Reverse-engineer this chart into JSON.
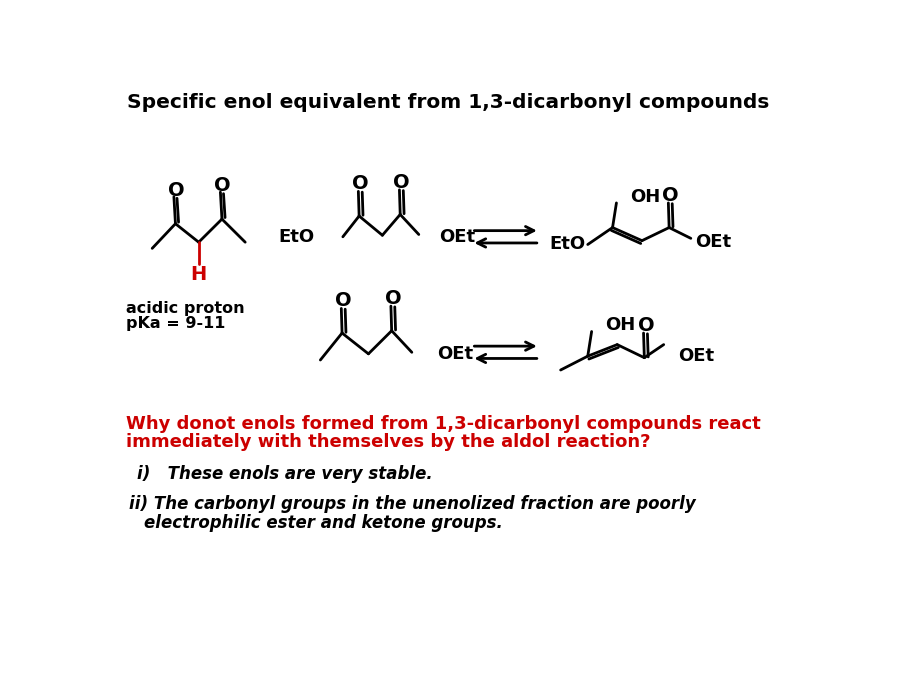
{
  "title": "Specific enol equivalent from 1,3-dicarbonyl compounds",
  "title_fontsize": 14.5,
  "title_color": "#000000",
  "bg_color": "#ffffff",
  "red_color": "#cc0000",
  "black_color": "#000000",
  "question_line1": "Why donot enols formed from 1,3-dicarbonyl compounds react",
  "question_line2": "immediately with themselves by the aldol reaction?",
  "item_i": "i)   These enols are very stable.",
  "item_ii_line1": "ii) The carbonyl groups in the unenolized fraction are poorly",
  "item_ii_line2": "     electrophilic ester and ketone groups."
}
